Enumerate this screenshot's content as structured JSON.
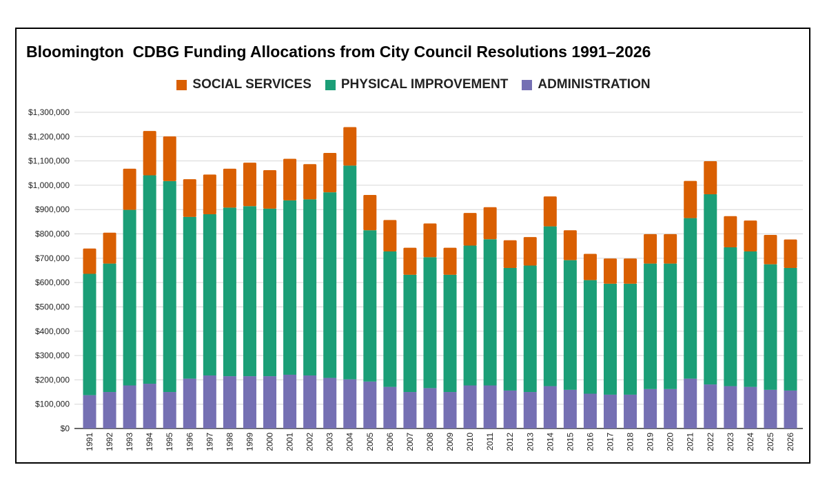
{
  "chart_data": {
    "type": "bar",
    "stacked": true,
    "title": "Bloomington  CDBG Funding Allocations from City Council Resolutions 1991–2026",
    "xlabel": "",
    "ylabel": "",
    "ylim": [
      0,
      1300000
    ],
    "yticks": [
      "$0",
      "$100,000",
      "$200,000",
      "$300,000",
      "$400,000",
      "$500,000",
      "$600,000",
      "$700,000",
      "$800,000",
      "$900,000",
      "$1,000,000",
      "$1,100,000",
      "$1,200,000",
      "$1,300,000"
    ],
    "grid": true,
    "legend_position": "top",
    "categories": [
      "1991",
      "1992",
      "1993",
      "1994",
      "1995",
      "1996",
      "1997",
      "1998",
      "1999",
      "2000",
      "2001",
      "2002",
      "2003",
      "2004",
      "2005",
      "2006",
      "2007",
      "2008",
      "2009",
      "2010",
      "2011",
      "2012",
      "2013",
      "2014",
      "2015",
      "2016",
      "2017",
      "2018",
      "2019",
      "2020",
      "2021",
      "2022",
      "2023",
      "2024",
      "2025",
      "2026"
    ],
    "series": [
      {
        "name": "ADMINISTRATION",
        "color": "#7570b3",
        "values": [
          137000,
          150000,
          177000,
          184000,
          150000,
          205000,
          218000,
          215000,
          215000,
          215000,
          221000,
          218000,
          208000,
          202000,
          193000,
          171000,
          150000,
          166000,
          150000,
          177000,
          177000,
          156000,
          150000,
          174000,
          159000,
          143000,
          139000,
          139000,
          162000,
          162000,
          205000,
          181000,
          174000,
          171000,
          159000,
          156000
        ]
      },
      {
        "name": "PHYSICAL IMPROVEMENT",
        "color": "#1b9e77",
        "values": [
          499000,
          528000,
          722000,
          857000,
          867000,
          665000,
          663000,
          693000,
          699000,
          689000,
          717000,
          724000,
          763000,
          879000,
          622000,
          557000,
          482000,
          538000,
          482000,
          575000,
          601000,
          504000,
          520000,
          657000,
          533000,
          467000,
          456000,
          456000,
          516000,
          516000,
          660000,
          782000,
          571000,
          557000,
          516000,
          504000
        ]
      },
      {
        "name": "SOCIAL SERVICES",
        "color": "#d95f02",
        "values": [
          104000,
          127000,
          169000,
          182000,
          184000,
          155000,
          163000,
          160000,
          179000,
          158000,
          171000,
          145000,
          162000,
          158000,
          145000,
          129000,
          111000,
          139000,
          111000,
          134000,
          132000,
          114000,
          117000,
          123000,
          123000,
          108000,
          104000,
          104000,
          121000,
          121000,
          153000,
          136000,
          128000,
          127000,
          121000,
          117000
        ]
      }
    ],
    "legend_order": [
      "SOCIAL SERVICES",
      "PHYSICAL IMPROVEMENT",
      "ADMINISTRATION"
    ]
  }
}
